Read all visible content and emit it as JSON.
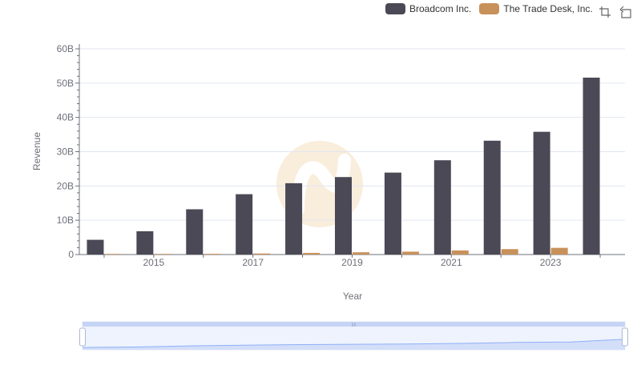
{
  "chart_data": {
    "type": "bar",
    "xlabel": "Year",
    "ylabel": "Revenue",
    "categories": [
      "2014",
      "2015",
      "2016",
      "2017",
      "2018",
      "2019",
      "2020",
      "2021",
      "2022",
      "2023",
      "2024"
    ],
    "x_tick_labels": [
      "2015",
      "2017",
      "2019",
      "2021",
      "2023"
    ],
    "y_tick_labels": [
      "0",
      "10B",
      "20B",
      "30B",
      "40B",
      "50B",
      "60B"
    ],
    "ylim": [
      0,
      60
    ],
    "y_unit": "B",
    "grid": true,
    "legend_position": "top-right",
    "series": [
      {
        "name": "Broadcom Inc.",
        "color": "#4a4955",
        "values": [
          4.3,
          6.8,
          13.2,
          17.6,
          20.8,
          22.6,
          23.9,
          27.5,
          33.2,
          35.8,
          51.6
        ]
      },
      {
        "name": "The Trade Desk, Inc.",
        "color": "#c8915a",
        "values": [
          0.045,
          0.114,
          0.203,
          0.308,
          0.477,
          0.661,
          0.836,
          1.2,
          1.58,
          1.95,
          null
        ]
      }
    ]
  },
  "legend": {
    "items": [
      {
        "label": "Broadcom Inc.",
        "color": "#4a4955"
      },
      {
        "label": "The Trade Desk, Inc.",
        "color": "#c8915a"
      }
    ]
  },
  "toolbox": {
    "zoom_icon": "zoom-icon",
    "restore_icon": "restore-icon"
  },
  "watermark": {
    "color": "#f7e7cf"
  },
  "datazoom": {
    "range_start_pct": 0,
    "range_end_pct": 100,
    "fill_color": "#dbe6fb",
    "line_color": "#8fb0f7"
  }
}
